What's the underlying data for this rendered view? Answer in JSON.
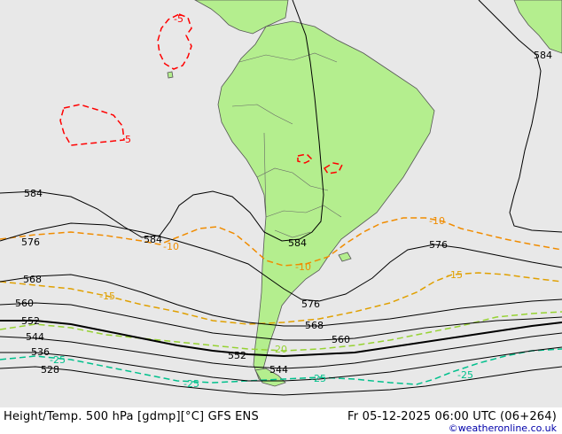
{
  "colors": {
    "sea": "#e8e8e8",
    "land": "#b4ee8e",
    "land_border": "#555555",
    "height_contour": "#000000",
    "temp_m5": "#ff0000",
    "temp_m10": "#f08c00",
    "temp_m15": "#e0a000",
    "temp_m20": "#96d232",
    "temp_m25": "#00c08c"
  },
  "height_labels": [
    {
      "text": "584"
    },
    {
      "text": "584"
    },
    {
      "text": "584"
    },
    {
      "text": "584"
    },
    {
      "text": "576"
    },
    {
      "text": "576"
    },
    {
      "text": "576"
    },
    {
      "text": "568"
    },
    {
      "text": "568"
    },
    {
      "text": "560"
    },
    {
      "text": "560"
    },
    {
      "text": "552"
    },
    {
      "text": "552"
    },
    {
      "text": "544"
    },
    {
      "text": "544"
    },
    {
      "text": "536"
    },
    {
      "text": "528"
    }
  ],
  "temp_labels": [
    {
      "text": "-5"
    },
    {
      "text": "-5"
    },
    {
      "text": "-10"
    },
    {
      "text": "-10"
    },
    {
      "text": "-10"
    },
    {
      "text": "-15"
    },
    {
      "text": "-15"
    },
    {
      "text": "-20"
    },
    {
      "text": "-25"
    },
    {
      "text": "-25"
    },
    {
      "text": "-25"
    },
    {
      "text": "-25"
    }
  ],
  "footer": {
    "title": "Height/Temp. 500 hPa [gdmp][°C] GFS ENS",
    "time": "Fr 05-12-2025 06:00 UTC (06+264)",
    "credit": "©weatheronline.co.uk"
  }
}
